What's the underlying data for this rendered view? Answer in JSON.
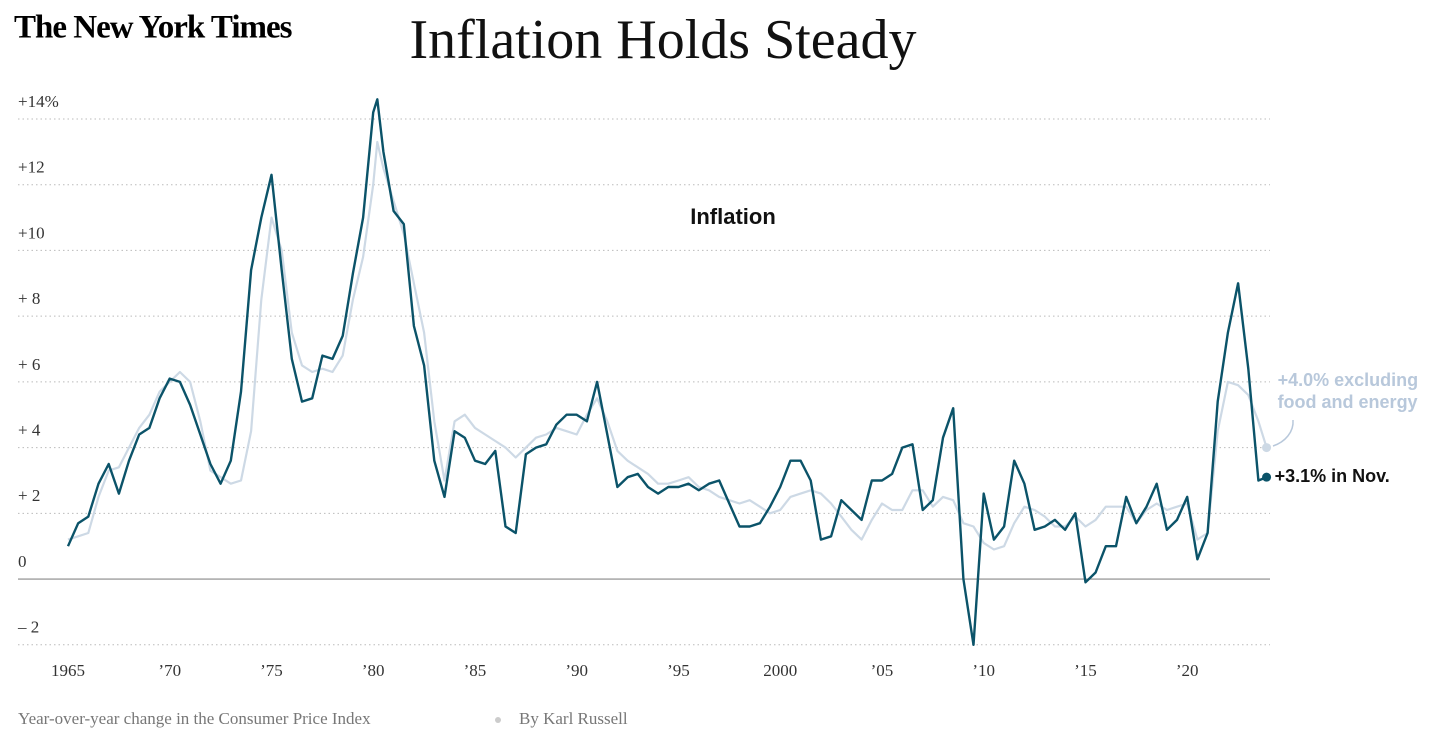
{
  "logo": "The New York Times",
  "chart_data": {
    "type": "line",
    "title": "Inflation Holds Steady",
    "subtitle": "Year-over-year change in the Consumer Price Index",
    "byline": "By Karl Russell",
    "x": [
      1965.0,
      1965.5,
      1966.0,
      1966.5,
      1967.0,
      1967.5,
      1968.0,
      1968.5,
      1969.0,
      1969.5,
      1970.0,
      1970.5,
      1971.0,
      1971.5,
      1972.0,
      1972.5,
      1973.0,
      1973.5,
      1974.0,
      1974.5,
      1975.0,
      1975.5,
      1976.0,
      1976.5,
      1977.0,
      1977.5,
      1978.0,
      1978.5,
      1979.0,
      1979.5,
      1980.0,
      1980.2,
      1980.5,
      1981.0,
      1981.5,
      1982.0,
      1982.5,
      1983.0,
      1983.5,
      1984.0,
      1984.5,
      1985.0,
      1985.5,
      1986.0,
      1986.5,
      1987.0,
      1987.5,
      1988.0,
      1988.5,
      1989.0,
      1989.5,
      1990.0,
      1990.5,
      1991.0,
      1991.5,
      1992.0,
      1992.5,
      1993.0,
      1993.5,
      1994.0,
      1994.5,
      1995.0,
      1995.5,
      1996.0,
      1996.5,
      1997.0,
      1997.5,
      1998.0,
      1998.5,
      1999.0,
      1999.5,
      2000.0,
      2000.5,
      2001.0,
      2001.5,
      2002.0,
      2002.5,
      2003.0,
      2003.5,
      2004.0,
      2004.5,
      2005.0,
      2005.5,
      2006.0,
      2006.5,
      2007.0,
      2007.5,
      2008.0,
      2008.5,
      2009.0,
      2009.5,
      2010.0,
      2010.5,
      2011.0,
      2011.5,
      2012.0,
      2012.5,
      2013.0,
      2013.5,
      2014.0,
      2014.5,
      2015.0,
      2015.5,
      2016.0,
      2016.5,
      2017.0,
      2017.5,
      2018.0,
      2018.5,
      2019.0,
      2019.5,
      2020.0,
      2020.5,
      2021.0,
      2021.5,
      2022.0,
      2022.5,
      2023.0,
      2023.5,
      2023.9
    ],
    "series": [
      {
        "name": "Inflation",
        "color": "#0b5369",
        "values": [
          1.0,
          1.7,
          1.9,
          2.9,
          3.5,
          2.6,
          3.6,
          4.4,
          4.6,
          5.5,
          6.1,
          6.0,
          5.3,
          4.4,
          3.5,
          2.9,
          3.6,
          5.7,
          9.4,
          11.0,
          12.3,
          9.4,
          6.7,
          5.4,
          5.5,
          6.8,
          6.7,
          7.4,
          9.3,
          11.0,
          14.2,
          14.6,
          13.0,
          11.2,
          10.8,
          7.7,
          6.5,
          3.6,
          2.5,
          4.5,
          4.3,
          3.6,
          3.5,
          3.9,
          1.6,
          1.4,
          3.8,
          4.0,
          4.1,
          4.7,
          5.0,
          5.0,
          4.8,
          6.0,
          4.4,
          2.8,
          3.1,
          3.2,
          2.8,
          2.6,
          2.8,
          2.8,
          2.9,
          2.7,
          2.9,
          3.0,
          2.3,
          1.6,
          1.6,
          1.7,
          2.2,
          2.8,
          3.6,
          3.6,
          3.0,
          1.2,
          1.3,
          2.4,
          2.1,
          1.8,
          3.0,
          3.0,
          3.2,
          4.0,
          4.1,
          2.1,
          2.4,
          4.3,
          5.2,
          0.0,
          -2.0,
          2.6,
          1.2,
          1.6,
          3.6,
          2.9,
          1.5,
          1.6,
          1.8,
          1.5,
          2.0,
          -0.1,
          0.2,
          1.0,
          1.0,
          2.5,
          1.7,
          2.2,
          2.9,
          1.5,
          1.8,
          2.5,
          0.6,
          1.4,
          5.4,
          7.5,
          9.0,
          6.4,
          3.0,
          3.1
        ]
      },
      {
        "color": "#cdd9e5",
        "values": [
          1.2,
          1.3,
          1.4,
          2.5,
          3.3,
          3.4,
          4.0,
          4.6,
          5.0,
          5.7,
          6.0,
          6.3,
          6.0,
          4.8,
          3.3,
          3.1,
          2.9,
          3.0,
          4.5,
          8.5,
          11.0,
          10.0,
          7.5,
          6.5,
          6.3,
          6.4,
          6.3,
          6.8,
          8.5,
          9.8,
          12.0,
          13.3,
          12.5,
          11.5,
          10.5,
          9.0,
          7.5,
          4.8,
          3.0,
          4.8,
          5.0,
          4.6,
          4.4,
          4.2,
          4.0,
          3.7,
          4.0,
          4.3,
          4.4,
          4.6,
          4.5,
          4.4,
          5.0,
          5.5,
          4.8,
          3.9,
          3.6,
          3.4,
          3.2,
          2.9,
          2.9,
          3.0,
          3.1,
          2.8,
          2.7,
          2.5,
          2.4,
          2.3,
          2.4,
          2.2,
          2.0,
          2.1,
          2.5,
          2.6,
          2.7,
          2.6,
          2.3,
          1.9,
          1.5,
          1.2,
          1.8,
          2.3,
          2.1,
          2.1,
          2.7,
          2.7,
          2.2,
          2.5,
          2.4,
          1.7,
          1.6,
          1.1,
          0.9,
          1.0,
          1.7,
          2.2,
          2.1,
          1.9,
          1.6,
          1.6,
          1.9,
          1.6,
          1.8,
          2.2,
          2.2,
          2.2,
          1.7,
          2.1,
          2.3,
          2.1,
          2.2,
          2.3,
          1.2,
          1.4,
          4.5,
          6.0,
          5.9,
          5.6,
          4.8,
          4.0
        ]
      }
    ],
    "annotations": [
      {
        "lines": [
          "+4.0% excluding",
          "food and energy"
        ],
        "series": 1
      },
      {
        "lines": [
          "+3.1% in Nov."
        ],
        "series": 0
      }
    ],
    "xlim": [
      1965,
      2024
    ],
    "xticks": [
      1965,
      {
        "value": 1970,
        "label": "’70"
      },
      {
        "value": 1975,
        "label": "’75"
      },
      {
        "value": 1980,
        "label": "’80"
      },
      {
        "value": 1985,
        "label": "’85"
      },
      {
        "value": 1990,
        "label": "’90"
      },
      {
        "value": 1995,
        "label": "’95"
      },
      2000,
      {
        "value": 2005,
        "label": "’05"
      },
      {
        "value": 2010,
        "label": "’10"
      },
      {
        "value": 2015,
        "label": "’15"
      },
      {
        "value": 2020,
        "label": "’20"
      }
    ],
    "ylim": [
      -2.5,
      14.9
    ],
    "yticks": [
      {
        "value": -2,
        "label": "– 2"
      },
      0,
      {
        "value": 2,
        "label": "+ 2"
      },
      {
        "value": 4,
        "label": "+ 4"
      },
      {
        "value": 6,
        "label": "+ 6"
      },
      {
        "value": 8,
        "label": "+ 8"
      },
      {
        "value": 10,
        "label": "+10"
      },
      {
        "value": 12,
        "label": "+12"
      },
      {
        "value": 14,
        "label": "+14%"
      }
    ],
    "grid": true
  }
}
